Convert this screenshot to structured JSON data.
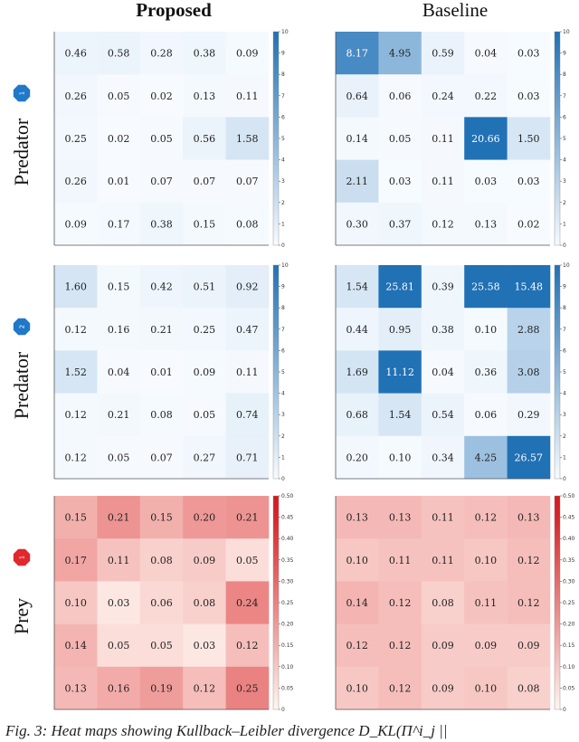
{
  "column_titles": [
    "Proposed",
    "Baseline"
  ],
  "row_labels": [
    "Predator",
    "Predator",
    "Prey"
  ],
  "row_badges": [
    "1",
    "2",
    "1"
  ],
  "caption": "Fig. 3: Heat maps showing Kullback–Leibler divergence D_KL(Π^i_j ||",
  "colors": {
    "blue_max": "#2171b5",
    "red_max": "#d7191c",
    "predator_badge": "#1f78c8",
    "prey_badge": "#e0282e"
  },
  "chart_data": [
    {
      "type": "heatmap",
      "panel": "predator-1-proposed",
      "palette": "blues",
      "vmin": 0,
      "vmax": 10,
      "colorbar_ticks": [
        "0",
        "1",
        "2",
        "3",
        "4",
        "5",
        "6",
        "7",
        "8",
        "9",
        "10"
      ],
      "values": [
        [
          0.46,
          0.58,
          0.28,
          0.38,
          0.09
        ],
        [
          0.26,
          0.05,
          0.02,
          0.13,
          0.11
        ],
        [
          0.25,
          0.02,
          0.05,
          0.56,
          1.58
        ],
        [
          0.26,
          0.01,
          0.07,
          0.07,
          0.07
        ],
        [
          0.09,
          0.17,
          0.38,
          0.15,
          0.08
        ]
      ]
    },
    {
      "type": "heatmap",
      "panel": "predator-1-baseline",
      "palette": "blues",
      "vmin": 0,
      "vmax": 10,
      "colorbar_ticks": [
        "0",
        "1",
        "2",
        "3",
        "4",
        "5",
        "6",
        "7",
        "8",
        "9",
        "10"
      ],
      "values": [
        [
          8.17,
          4.95,
          0.59,
          0.04,
          0.03
        ],
        [
          0.64,
          0.06,
          0.24,
          0.22,
          0.03
        ],
        [
          0.14,
          0.05,
          0.11,
          20.66,
          1.5
        ],
        [
          2.11,
          0.03,
          0.11,
          0.03,
          0.03
        ],
        [
          0.3,
          0.37,
          0.12,
          0.13,
          0.02
        ]
      ]
    },
    {
      "type": "heatmap",
      "panel": "predator-2-proposed",
      "palette": "blues",
      "vmin": 0,
      "vmax": 10,
      "colorbar_ticks": [
        "0",
        "1",
        "2",
        "3",
        "4",
        "5",
        "6",
        "7",
        "8",
        "9",
        "10"
      ],
      "values": [
        [
          1.6,
          0.15,
          0.42,
          0.51,
          0.92
        ],
        [
          0.12,
          0.16,
          0.21,
          0.25,
          0.47
        ],
        [
          1.52,
          0.04,
          0.01,
          0.09,
          0.11
        ],
        [
          0.12,
          0.21,
          0.08,
          0.05,
          0.74
        ],
        [
          0.12,
          0.05,
          0.07,
          0.27,
          0.71
        ]
      ]
    },
    {
      "type": "heatmap",
      "panel": "predator-2-baseline",
      "palette": "blues",
      "vmin": 0,
      "vmax": 10,
      "colorbar_ticks": [
        "0",
        "1",
        "2",
        "3",
        "4",
        "5",
        "6",
        "7",
        "8",
        "9",
        "10"
      ],
      "values": [
        [
          1.54,
          25.81,
          0.39,
          25.58,
          15.48
        ],
        [
          0.44,
          0.95,
          0.38,
          0.1,
          2.88
        ],
        [
          1.69,
          11.12,
          0.04,
          0.36,
          3.08
        ],
        [
          0.68,
          1.54,
          0.54,
          0.06,
          0.29
        ],
        [
          0.2,
          0.1,
          0.34,
          4.25,
          26.57
        ]
      ]
    },
    {
      "type": "heatmap",
      "panel": "prey-1-proposed",
      "palette": "reds",
      "vmin": 0,
      "vmax": 0.5,
      "colorbar_ticks": [
        "0",
        "0.05",
        "0.10",
        "0.15",
        "0.20",
        "0.25",
        "0.30",
        "0.35",
        "0.40",
        "0.45",
        "0.50"
      ],
      "values": [
        [
          0.15,
          0.21,
          0.15,
          0.2,
          0.21
        ],
        [
          0.17,
          0.11,
          0.08,
          0.09,
          0.05
        ],
        [
          0.1,
          0.03,
          0.06,
          0.08,
          0.24
        ],
        [
          0.14,
          0.05,
          0.05,
          0.03,
          0.12
        ],
        [
          0.13,
          0.16,
          0.19,
          0.12,
          0.25
        ]
      ]
    },
    {
      "type": "heatmap",
      "panel": "prey-1-baseline",
      "palette": "reds",
      "vmin": 0,
      "vmax": 0.5,
      "colorbar_ticks": [
        "0",
        "0.05",
        "0.10",
        "0.15",
        "0.20",
        "0.25",
        "0.30",
        "0.35",
        "0.40",
        "0.45",
        "0.50"
      ],
      "values": [
        [
          0.13,
          0.13,
          0.11,
          0.12,
          0.13
        ],
        [
          0.1,
          0.11,
          0.11,
          0.1,
          0.12
        ],
        [
          0.14,
          0.12,
          0.08,
          0.11,
          0.12
        ],
        [
          0.12,
          0.12,
          0.09,
          0.09,
          0.09
        ],
        [
          0.1,
          0.12,
          0.09,
          0.1,
          0.08
        ]
      ]
    }
  ]
}
